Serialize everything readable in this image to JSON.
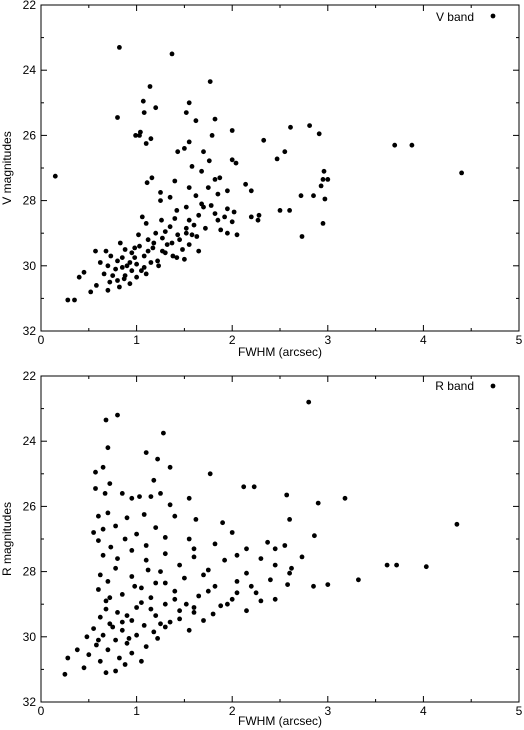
{
  "chart_data": [
    {
      "type": "scatter",
      "title": "",
      "xlabel": "FWHM (arcsec)",
      "ylabel": "V magnitudes",
      "legend": "V band",
      "legend_position": "top-right",
      "xlim": [
        0,
        5
      ],
      "ylim": [
        22,
        32
      ],
      "y_inverted": true,
      "grid": false,
      "marker_color": "#000000",
      "xticks": [
        "0",
        "1",
        "2",
        "3",
        "4",
        "5"
      ],
      "yticks": [
        "22",
        "24",
        "26",
        "28",
        "30",
        "32"
      ],
      "points": [
        [
          0.82,
          23.3
        ],
        [
          1.37,
          23.5
        ],
        [
          1.77,
          24.35
        ],
        [
          1.14,
          24.5
        ],
        [
          1.07,
          24.95
        ],
        [
          1.55,
          25.0
        ],
        [
          1.2,
          25.15
        ],
        [
          0.8,
          25.45
        ],
        [
          1.82,
          25.5
        ],
        [
          1.08,
          25.3
        ],
        [
          1.52,
          25.3
        ],
        [
          1.62,
          25.55
        ],
        [
          2.0,
          25.85
        ],
        [
          2.61,
          25.75
        ],
        [
          2.81,
          25.7
        ],
        [
          1.04,
          25.9
        ],
        [
          1.15,
          26.1
        ],
        [
          1.79,
          26.0
        ],
        [
          1.55,
          26.2
        ],
        [
          1.03,
          26.0
        ],
        [
          1.1,
          26.25
        ],
        [
          0.99,
          26.0
        ],
        [
          2.33,
          26.15
        ],
        [
          2.91,
          25.95
        ],
        [
          1.5,
          26.4
        ],
        [
          2.55,
          26.5
        ],
        [
          1.43,
          26.5
        ],
        [
          1.7,
          26.5
        ],
        [
          2.47,
          26.72
        ],
        [
          1.76,
          26.78
        ],
        [
          3.7,
          26.3
        ],
        [
          3.88,
          26.3
        ],
        [
          2.0,
          26.75
        ],
        [
          1.58,
          26.95
        ],
        [
          2.04,
          26.85
        ],
        [
          1.68,
          27.1
        ],
        [
          1.16,
          27.3
        ],
        [
          2.96,
          27.1
        ],
        [
          4.4,
          27.15
        ],
        [
          0.15,
          27.25
        ],
        [
          1.82,
          27.35
        ],
        [
          1.4,
          27.4
        ],
        [
          1.87,
          27.3
        ],
        [
          2.95,
          27.35
        ],
        [
          3.0,
          27.35
        ],
        [
          1.11,
          27.45
        ],
        [
          1.55,
          27.6
        ],
        [
          2.14,
          27.5
        ],
        [
          2.93,
          27.55
        ],
        [
          1.75,
          27.6
        ],
        [
          1.95,
          27.7
        ],
        [
          2.72,
          27.85
        ],
        [
          2.85,
          27.85
        ],
        [
          1.25,
          27.75
        ],
        [
          2.2,
          27.7
        ],
        [
          1.85,
          27.8
        ],
        [
          1.62,
          27.85
        ],
        [
          1.35,
          27.9
        ],
        [
          1.25,
          28.0
        ],
        [
          1.68,
          28.1
        ],
        [
          2.97,
          27.95
        ],
        [
          1.52,
          28.2
        ],
        [
          1.78,
          28.15
        ],
        [
          2.6,
          28.3
        ],
        [
          1.95,
          28.25
        ],
        [
          2.2,
          28.5
        ],
        [
          2.5,
          28.3
        ],
        [
          1.42,
          28.3
        ],
        [
          2.28,
          28.45
        ],
        [
          1.65,
          28.45
        ],
        [
          1.06,
          28.5
        ],
        [
          2.27,
          28.6
        ],
        [
          1.85,
          28.6
        ],
        [
          1.55,
          28.6
        ],
        [
          1.26,
          28.6
        ],
        [
          2.0,
          28.65
        ],
        [
          2.95,
          28.7
        ],
        [
          1.1,
          28.7
        ],
        [
          1.35,
          28.8
        ],
        [
          1.72,
          28.85
        ],
        [
          1.88,
          28.9
        ],
        [
          2.05,
          29.05
        ],
        [
          2.73,
          29.1
        ],
        [
          1.52,
          29.0
        ],
        [
          1.2,
          29.0
        ],
        [
          1.43,
          29.05
        ],
        [
          1.02,
          29.05
        ],
        [
          1.95,
          29.0
        ],
        [
          1.63,
          29.1
        ],
        [
          1.27,
          29.15
        ],
        [
          1.12,
          29.2
        ],
        [
          1.37,
          29.3
        ],
        [
          0.83,
          29.3
        ],
        [
          1.55,
          29.35
        ],
        [
          1.17,
          29.45
        ],
        [
          1.48,
          29.5
        ],
        [
          1.03,
          29.4
        ],
        [
          0.88,
          29.5
        ],
        [
          0.68,
          29.55
        ],
        [
          1.65,
          29.55
        ],
        [
          0.95,
          29.6
        ],
        [
          0.57,
          29.55
        ],
        [
          1.3,
          29.6
        ],
        [
          0.73,
          29.7
        ],
        [
          1.08,
          29.7
        ],
        [
          0.85,
          29.75
        ],
        [
          1.42,
          29.75
        ],
        [
          0.8,
          29.85
        ],
        [
          0.62,
          29.9
        ],
        [
          1.15,
          29.9
        ],
        [
          0.93,
          29.9
        ],
        [
          1.0,
          29.95
        ],
        [
          0.7,
          30.0
        ],
        [
          1.23,
          30.0
        ],
        [
          0.85,
          30.05
        ],
        [
          0.78,
          30.1
        ],
        [
          0.95,
          30.15
        ],
        [
          1.05,
          30.15
        ],
        [
          0.45,
          30.2
        ],
        [
          0.66,
          30.25
        ],
        [
          1.1,
          30.25
        ],
        [
          0.88,
          30.3
        ],
        [
          0.4,
          30.35
        ],
        [
          0.8,
          30.45
        ],
        [
          1.0,
          30.35
        ],
        [
          0.72,
          30.5
        ],
        [
          0.93,
          30.55
        ],
        [
          0.58,
          30.6
        ],
        [
          0.82,
          30.65
        ],
        [
          0.52,
          30.8
        ],
        [
          0.35,
          31.05
        ],
        [
          0.28,
          31.05
        ],
        [
          0.98,
          29.45
        ],
        [
          1.12,
          29.55
        ],
        [
          1.32,
          29.35
        ],
        [
          1.45,
          29.2
        ],
        [
          1.58,
          29.05
        ],
        [
          1.38,
          29.7
        ],
        [
          1.22,
          29.85
        ],
        [
          0.9,
          30.0
        ],
        [
          0.98,
          29.75
        ],
        [
          1.3,
          28.95
        ],
        [
          1.6,
          28.75
        ],
        [
          1.4,
          28.55
        ],
        [
          1.18,
          29.3
        ],
        [
          1.5,
          29.8
        ],
        [
          1.08,
          30.05
        ],
        [
          0.75,
          30.3
        ],
        [
          0.7,
          30.75
        ],
        [
          0.87,
          30.4
        ],
        [
          1.27,
          29.55
        ],
        [
          1.52,
          28.85
        ],
        [
          1.82,
          28.4
        ],
        [
          1.7,
          28.2
        ],
        [
          1.92,
          28.5
        ],
        [
          2.02,
          28.35
        ]
      ]
    },
    {
      "type": "scatter",
      "title": "",
      "xlabel": "FWHM (arcsec)",
      "ylabel": "R magnitudes",
      "legend": "R band",
      "legend_position": "top-right",
      "xlim": [
        0,
        5
      ],
      "ylim": [
        22,
        32
      ],
      "y_inverted": true,
      "grid": false,
      "marker_color": "#000000",
      "xticks": [
        "0",
        "1",
        "2",
        "3",
        "4",
        "5"
      ],
      "yticks": [
        "22",
        "24",
        "26",
        "28",
        "30",
        "32"
      ],
      "points": [
        [
          2.8,
          22.8
        ],
        [
          0.8,
          23.2
        ],
        [
          0.68,
          23.35
        ],
        [
          1.28,
          23.75
        ],
        [
          0.7,
          24.2
        ],
        [
          1.1,
          24.35
        ],
        [
          1.22,
          24.55
        ],
        [
          1.35,
          24.8
        ],
        [
          0.65,
          24.8
        ],
        [
          0.57,
          24.95
        ],
        [
          1.77,
          25.0
        ],
        [
          1.18,
          25.2
        ],
        [
          0.72,
          25.3
        ],
        [
          2.12,
          25.4
        ],
        [
          2.23,
          25.4
        ],
        [
          0.57,
          25.45
        ],
        [
          0.67,
          25.6
        ],
        [
          0.85,
          25.6
        ],
        [
          1.03,
          25.7
        ],
        [
          1.15,
          25.7
        ],
        [
          1.25,
          25.6
        ],
        [
          1.55,
          25.75
        ],
        [
          2.57,
          25.65
        ],
        [
          3.18,
          25.75
        ],
        [
          0.95,
          25.75
        ],
        [
          2.9,
          25.9
        ],
        [
          1.35,
          25.95
        ],
        [
          0.7,
          26.2
        ],
        [
          1.08,
          26.25
        ],
        [
          0.6,
          26.3
        ],
        [
          1.4,
          26.3
        ],
        [
          0.9,
          26.35
        ],
        [
          2.6,
          26.4
        ],
        [
          1.62,
          26.4
        ],
        [
          1.9,
          26.5
        ],
        [
          4.35,
          26.55
        ],
        [
          0.78,
          26.6
        ],
        [
          0.65,
          26.7
        ],
        [
          1.2,
          26.65
        ],
        [
          2.0,
          26.8
        ],
        [
          0.55,
          26.8
        ],
        [
          2.86,
          26.9
        ],
        [
          1.0,
          26.85
        ],
        [
          1.3,
          26.95
        ],
        [
          0.88,
          27.0
        ],
        [
          1.55,
          27.0
        ],
        [
          0.6,
          27.05
        ],
        [
          2.37,
          27.1
        ],
        [
          1.82,
          27.15
        ],
        [
          1.1,
          27.2
        ],
        [
          0.73,
          27.25
        ],
        [
          2.55,
          27.2
        ],
        [
          1.6,
          27.3
        ],
        [
          2.15,
          27.3
        ],
        [
          0.95,
          27.35
        ],
        [
          1.3,
          27.45
        ],
        [
          0.65,
          27.5
        ],
        [
          2.05,
          27.5
        ],
        [
          2.73,
          27.55
        ],
        [
          2.3,
          27.6
        ],
        [
          1.92,
          27.65
        ],
        [
          1.1,
          27.65
        ],
        [
          3.62,
          27.8
        ],
        [
          3.72,
          27.8
        ],
        [
          4.03,
          27.85
        ],
        [
          1.45,
          27.8
        ],
        [
          2.45,
          27.8
        ],
        [
          2.62,
          27.9
        ],
        [
          0.78,
          27.9
        ],
        [
          1.75,
          27.95
        ],
        [
          1.25,
          28.0
        ],
        [
          3.32,
          28.25
        ],
        [
          0.62,
          28.1
        ],
        [
          2.15,
          28.05
        ],
        [
          0.95,
          28.15
        ],
        [
          1.5,
          28.2
        ],
        [
          2.4,
          28.25
        ],
        [
          2.05,
          28.3
        ],
        [
          0.7,
          28.3
        ],
        [
          1.2,
          28.35
        ],
        [
          2.58,
          28.4
        ],
        [
          2.85,
          28.45
        ],
        [
          1.82,
          28.45
        ],
        [
          1.05,
          28.5
        ],
        [
          0.6,
          28.55
        ],
        [
          1.4,
          28.6
        ],
        [
          2.25,
          28.65
        ],
        [
          2.05,
          28.65
        ],
        [
          0.85,
          28.7
        ],
        [
          1.65,
          28.75
        ],
        [
          1.15,
          28.8
        ],
        [
          2.45,
          28.85
        ],
        [
          0.68,
          28.9
        ],
        [
          1.3,
          29.0
        ],
        [
          1.95,
          29.0
        ],
        [
          1.0,
          29.1
        ],
        [
          1.6,
          29.1
        ],
        [
          2.15,
          29.2
        ],
        [
          0.8,
          29.25
        ],
        [
          1.8,
          29.3
        ],
        [
          1.2,
          29.35
        ],
        [
          0.62,
          29.4
        ],
        [
          1.45,
          29.45
        ],
        [
          0.95,
          29.5
        ],
        [
          1.7,
          29.5
        ],
        [
          0.72,
          29.6
        ],
        [
          1.08,
          29.65
        ],
        [
          1.3,
          29.7
        ],
        [
          0.55,
          29.75
        ],
        [
          0.85,
          29.8
        ],
        [
          1.55,
          29.8
        ],
        [
          0.65,
          29.95
        ],
        [
          1.0,
          29.95
        ],
        [
          0.48,
          30.0
        ],
        [
          1.22,
          30.05
        ],
        [
          0.78,
          30.1
        ],
        [
          0.9,
          30.2
        ],
        [
          0.58,
          30.25
        ],
        [
          1.1,
          30.3
        ],
        [
          0.7,
          30.4
        ],
        [
          0.38,
          30.4
        ],
        [
          0.95,
          30.5
        ],
        [
          0.5,
          30.55
        ],
        [
          0.82,
          30.65
        ],
        [
          0.28,
          30.65
        ],
        [
          0.62,
          30.75
        ],
        [
          0.45,
          30.95
        ],
        [
          0.78,
          31.05
        ],
        [
          0.25,
          31.15
        ],
        [
          0.68,
          31.1
        ],
        [
          0.88,
          30.85
        ],
        [
          1.05,
          30.75
        ],
        [
          1.35,
          29.55
        ],
        [
          1.6,
          29.25
        ],
        [
          1.88,
          29.05
        ],
        [
          2.3,
          28.9
        ],
        [
          1.15,
          29.15
        ],
        [
          0.9,
          29.35
        ],
        [
          1.05,
          28.95
        ],
        [
          1.4,
          28.85
        ],
        [
          0.75,
          29.7
        ],
        [
          1.25,
          29.6
        ],
        [
          1.75,
          28.6
        ],
        [
          1.52,
          29.0
        ],
        [
          0.68,
          29.15
        ],
        [
          0.92,
          30.05
        ],
        [
          1.18,
          29.85
        ],
        [
          1.45,
          29.2
        ],
        [
          0.6,
          30.1
        ],
        [
          0.85,
          29.55
        ],
        [
          2.0,
          28.85
        ],
        [
          2.2,
          28.45
        ],
        [
          1.7,
          28.1
        ],
        [
          1.3,
          28.35
        ],
        [
          0.72,
          28.8
        ],
        [
          0.98,
          28.45
        ],
        [
          1.12,
          27.95
        ],
        [
          0.8,
          27.6
        ],
        [
          1.6,
          27.55
        ],
        [
          2.45,
          27.3
        ],
        [
          2.6,
          28.05
        ],
        [
          3.0,
          28.4
        ]
      ]
    }
  ]
}
